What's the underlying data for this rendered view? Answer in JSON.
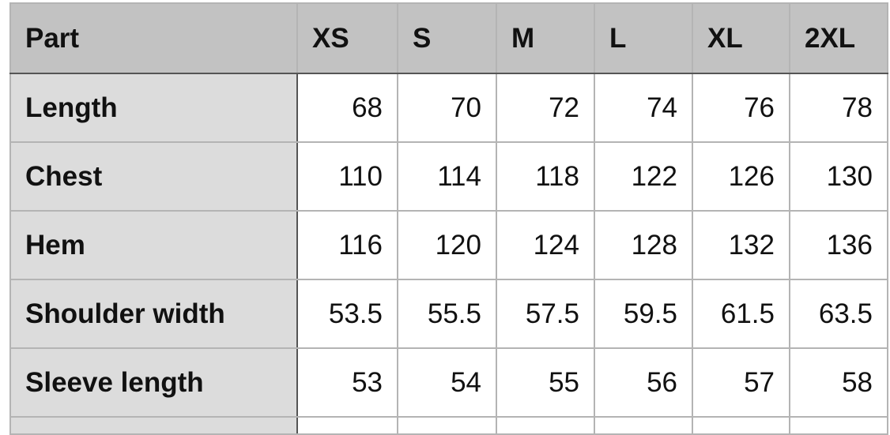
{
  "table": {
    "headers": [
      "Part",
      "XS",
      "S",
      "M",
      "L",
      "XL",
      "2XL"
    ],
    "rows": [
      {
        "label": "Length",
        "values": [
          "68",
          "70",
          "72",
          "74",
          "76",
          "78"
        ]
      },
      {
        "label": "Chest",
        "values": [
          "110",
          "114",
          "118",
          "122",
          "126",
          "130"
        ]
      },
      {
        "label": "Hem",
        "values": [
          "116",
          "120",
          "124",
          "128",
          "132",
          "136"
        ]
      },
      {
        "label": "Shoulder width",
        "values": [
          "53.5",
          "55.5",
          "57.5",
          "59.5",
          "61.5",
          "63.5"
        ]
      },
      {
        "label": "Sleeve length",
        "values": [
          "53",
          "54",
          "55",
          "56",
          "57",
          "58"
        ]
      }
    ]
  },
  "colors": {
    "header_bg": "#c2c2c2",
    "label_bg": "#dcdcdc",
    "grid": "#b4b4b4"
  }
}
